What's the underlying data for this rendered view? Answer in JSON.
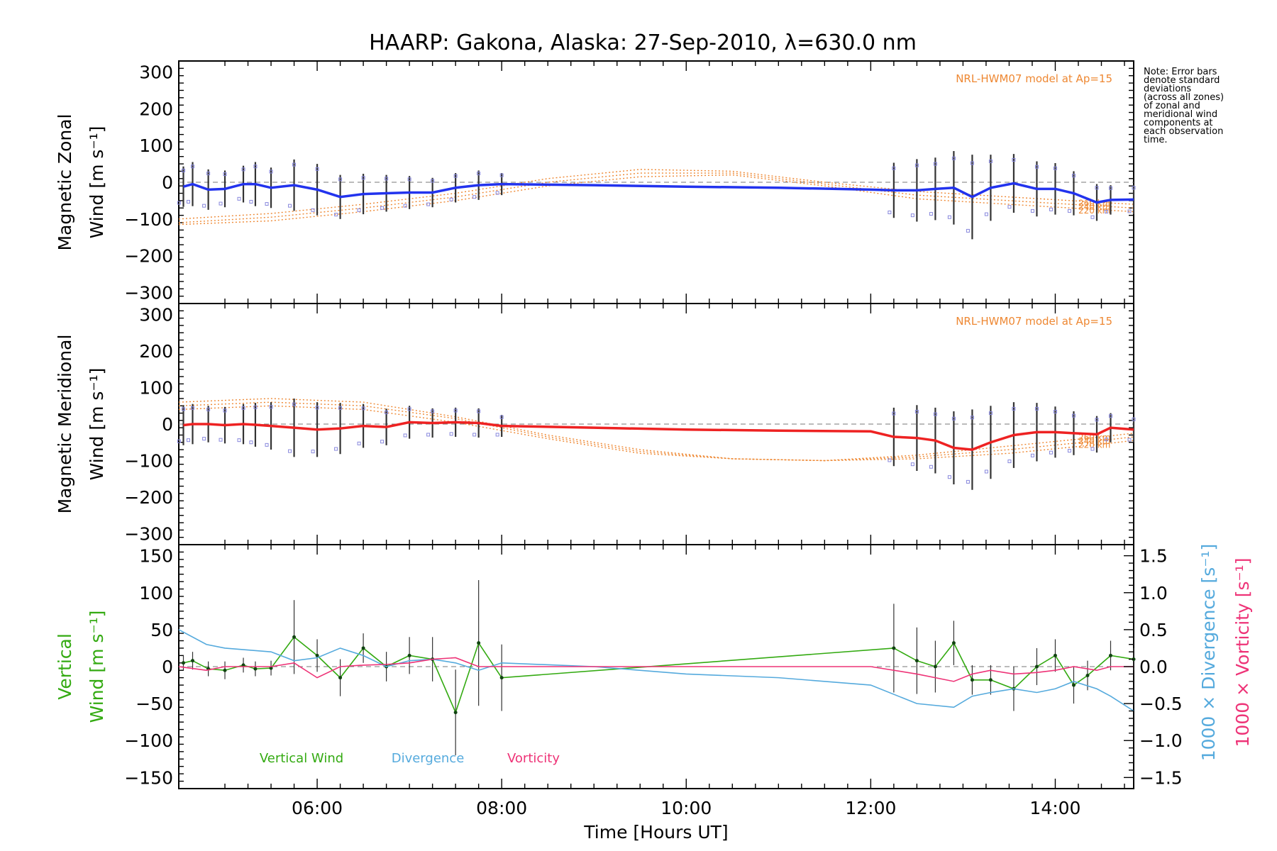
{
  "chart_data": [
    {
      "type": "line",
      "title": "HAARP: Gakona,  Alaska: 27-Sep-2010, λ=630.0 nm",
      "ylabel_lines": [
        "Magnetic Zonal",
        "Wind [m s⁻¹]"
      ],
      "xlim": [
        4.5,
        14.85
      ],
      "ylim": [
        -330,
        330
      ],
      "yticks": [
        300,
        200,
        100,
        0,
        -100,
        -200,
        -300
      ],
      "model_label": "NRL-HWM07 model at Ap=15",
      "altitude_labels": [
        "260 km",
        "240 km",
        "220 km"
      ],
      "series": [
        {
          "color": "#2233ee",
          "x": [
            4.55,
            4.65,
            4.82,
            5.0,
            5.2,
            5.33,
            5.5,
            5.75,
            6.0,
            6.25,
            6.5,
            6.75,
            7.0,
            7.25,
            7.5,
            7.75,
            8.0,
            9.0,
            10.0,
            11.0,
            12.0,
            12.25,
            12.5,
            12.7,
            12.9,
            13.1,
            13.3,
            13.55,
            13.8,
            14.0,
            14.2,
            14.45,
            14.6,
            14.85
          ],
          "y": [
            -12,
            -5,
            -20,
            -18,
            -5,
            -5,
            -15,
            -8,
            -20,
            -40,
            -32,
            -30,
            -28,
            -28,
            -15,
            -8,
            -5,
            -8,
            -12,
            -15,
            -20,
            -22,
            -22,
            -18,
            -15,
            -40,
            -15,
            -3,
            -18,
            -18,
            -30,
            -55,
            -48,
            -47
          ],
          "err": [
            55,
            60,
            55,
            50,
            50,
            60,
            55,
            70,
            70,
            60,
            55,
            50,
            45,
            40,
            40,
            40,
            30,
            0,
            0,
            0,
            0,
            75,
            85,
            85,
            100,
            115,
            90,
            80,
            75,
            70,
            60,
            50,
            40,
            40
          ]
        }
      ],
      "model_curves": [
        {
          "altitude": "260 km",
          "x": [
            4.5,
            5.5,
            6.5,
            7.5,
            8.5,
            9.5,
            10.5,
            11.5,
            12.5,
            13.5,
            14.5,
            14.85
          ],
          "y": [
            -100,
            -85,
            -60,
            -30,
            10,
            35,
            30,
            0,
            -25,
            -40,
            -55,
            -60
          ]
        },
        {
          "altitude": "240 km",
          "x": [
            4.5,
            5.5,
            6.5,
            7.5,
            8.5,
            9.5,
            10.5,
            11.5,
            12.5,
            13.5,
            14.5,
            14.85
          ],
          "y": [
            -110,
            -95,
            -70,
            -40,
            0,
            25,
            25,
            -5,
            -35,
            -50,
            -65,
            -70
          ]
        },
        {
          "altitude": "220 km",
          "x": [
            4.5,
            5.5,
            6.5,
            7.5,
            8.5,
            9.5,
            10.5,
            11.5,
            12.5,
            13.5,
            14.5,
            14.85
          ],
          "y": [
            -115,
            -105,
            -80,
            -50,
            -10,
            15,
            20,
            -10,
            -45,
            -60,
            -75,
            -80
          ]
        }
      ]
    },
    {
      "type": "line",
      "ylabel_lines": [
        "Magnetic Meridional",
        "Wind [m s⁻¹]"
      ],
      "xlim": [
        4.5,
        14.85
      ],
      "ylim": [
        -330,
        330
      ],
      "yticks": [
        300,
        200,
        100,
        0,
        -100,
        -200,
        -300
      ],
      "model_label": "NRL-HWM07 model at Ap=15",
      "altitude_labels": [
        "260 km",
        "240 km",
        "220 km"
      ],
      "series": [
        {
          "color": "#ee2222",
          "x": [
            4.55,
            4.65,
            4.82,
            5.0,
            5.2,
            5.33,
            5.5,
            5.75,
            6.0,
            6.25,
            6.5,
            6.75,
            7.0,
            7.25,
            7.5,
            7.75,
            8.0,
            9.0,
            10.0,
            11.0,
            12.0,
            12.25,
            12.5,
            12.7,
            12.9,
            13.1,
            13.3,
            13.55,
            13.8,
            14.0,
            14.2,
            14.45,
            14.6,
            14.85
          ],
          "y": [
            -3,
            0,
            0,
            -3,
            0,
            -2,
            -5,
            -10,
            -15,
            -12,
            -5,
            -8,
            5,
            3,
            5,
            3,
            -5,
            -10,
            -15,
            -18,
            -20,
            -35,
            -38,
            -45,
            -65,
            -70,
            -50,
            -30,
            -22,
            -22,
            -25,
            -28,
            -10,
            -15
          ],
          "err": [
            55,
            55,
            50,
            50,
            55,
            60,
            65,
            80,
            75,
            70,
            60,
            50,
            45,
            40,
            40,
            40,
            30,
            0,
            0,
            0,
            0,
            80,
            90,
            90,
            100,
            110,
            100,
            90,
            80,
            70,
            60,
            50,
            40,
            35
          ]
        }
      ],
      "model_curves": [
        {
          "altitude": "260 km",
          "x": [
            4.5,
            5.5,
            6.5,
            7.5,
            8.5,
            9.5,
            10.5,
            11.5,
            12.5,
            13.5,
            14.5,
            14.85
          ],
          "y": [
            60,
            70,
            60,
            20,
            -30,
            -70,
            -95,
            -100,
            -85,
            -60,
            -35,
            -25
          ]
        },
        {
          "altitude": "240 km",
          "x": [
            4.5,
            5.5,
            6.5,
            7.5,
            8.5,
            9.5,
            10.5,
            11.5,
            12.5,
            13.5,
            14.5,
            14.85
          ],
          "y": [
            50,
            60,
            50,
            15,
            -35,
            -75,
            -95,
            -100,
            -90,
            -70,
            -45,
            -35
          ]
        },
        {
          "altitude": "220 km",
          "x": [
            4.5,
            5.5,
            6.5,
            7.5,
            8.5,
            9.5,
            10.5,
            11.5,
            12.5,
            13.5,
            14.5,
            14.85
          ],
          "y": [
            40,
            50,
            40,
            5,
            -40,
            -80,
            -95,
            -100,
            -95,
            -80,
            -55,
            -45
          ]
        }
      ]
    },
    {
      "type": "line",
      "ylabel_lines": [
        "Vertical",
        "Wind [m s⁻¹]"
      ],
      "y2label": "1000 × Divergence [s⁻¹]",
      "y3label": "1000 × Vorticity [s⁻¹]",
      "xlabel": "Time [Hours UT]",
      "xticks": [
        "06:00",
        "08:00",
        "10:00",
        "12:00",
        "14:00"
      ],
      "xtick_values": [
        6,
        8,
        10,
        12,
        14
      ],
      "xlim": [
        4.5,
        14.85
      ],
      "ylim": [
        -165,
        165
      ],
      "yticks": [
        150,
        100,
        50,
        0,
        -50,
        -100,
        -150
      ],
      "y2lim": [
        -1.65,
        1.65
      ],
      "y2ticks": [
        "1.5",
        "1.0",
        "0.5",
        "0.0",
        "−0.5",
        "−1.0",
        "−1.5"
      ],
      "y2tick_values": [
        1.5,
        1.0,
        0.5,
        0.0,
        -0.5,
        -1.0,
        -1.5
      ],
      "legend": [
        "Vertical Wind",
        "Divergence",
        "Vorticity"
      ],
      "series": [
        {
          "name": "Vertical Wind",
          "color": "#33aa11",
          "x": [
            4.55,
            4.65,
            4.82,
            5.0,
            5.2,
            5.33,
            5.5,
            5.75,
            6.0,
            6.25,
            6.5,
            6.75,
            7.0,
            7.25,
            7.5,
            7.75,
            8.0,
            12.25,
            12.5,
            12.7,
            12.9,
            13.1,
            13.3,
            13.55,
            13.8,
            14.0,
            14.2,
            14.35,
            14.6,
            14.85
          ],
          "y": [
            5,
            8,
            -3,
            -5,
            2,
            -3,
            -2,
            40,
            15,
            -15,
            25,
            0,
            15,
            10,
            -62,
            32,
            -15,
            25,
            8,
            0,
            32,
            -18,
            -18,
            -30,
            0,
            15,
            -25,
            -12,
            15,
            10
          ],
          "err": [
            10,
            12,
            10,
            12,
            10,
            10,
            10,
            50,
            22,
            25,
            20,
            20,
            25,
            30,
            58,
            85,
            45,
            60,
            45,
            35,
            30,
            20,
            20,
            30,
            25,
            22,
            25,
            20,
            20,
            15
          ]
        },
        {
          "name": "Divergence",
          "color": "#55aadd",
          "axis": "y2",
          "x": [
            4.5,
            4.8,
            5.0,
            5.5,
            5.75,
            6.0,
            6.25,
            6.5,
            6.75,
            7.0,
            7.25,
            7.5,
            7.75,
            8.0,
            9.0,
            10.0,
            11.0,
            12.0,
            12.5,
            12.9,
            13.1,
            13.3,
            13.55,
            13.8,
            14.0,
            14.2,
            14.45,
            14.6,
            14.85
          ],
          "y": [
            0.5,
            0.3,
            0.25,
            0.2,
            0.08,
            0.12,
            0.25,
            0.15,
            0.0,
            0.08,
            0.1,
            0.05,
            -0.05,
            0.05,
            0.0,
            -0.1,
            -0.15,
            -0.25,
            -0.5,
            -0.55,
            -0.4,
            -0.35,
            -0.3,
            -0.35,
            -0.3,
            -0.2,
            -0.3,
            -0.4,
            -0.6
          ]
        },
        {
          "name": "Vorticity",
          "color": "#ee3377",
          "axis": "y2",
          "x": [
            4.5,
            4.8,
            5.0,
            5.5,
            5.75,
            6.0,
            6.25,
            6.5,
            6.75,
            7.0,
            7.25,
            7.5,
            7.75,
            8.0,
            9.0,
            10.0,
            11.0,
            12.0,
            12.5,
            12.9,
            13.1,
            13.3,
            13.55,
            13.8,
            14.0,
            14.2,
            14.45,
            14.6,
            14.85
          ],
          "y": [
            0.0,
            -0.05,
            0.0,
            0.0,
            0.05,
            -0.15,
            0.0,
            0.02,
            0.03,
            0.05,
            0.1,
            0.12,
            0.0,
            0.0,
            0.0,
            0.0,
            0.0,
            0.0,
            -0.1,
            -0.2,
            -0.1,
            -0.05,
            -0.1,
            -0.08,
            -0.05,
            0.0,
            -0.05,
            0.0,
            0.0
          ]
        }
      ]
    }
  ],
  "note_lines": [
    "Note: Error bars",
    "denote standard",
    "deviations",
    "(across all zones)",
    "of zonal and",
    "meridional wind",
    "components at",
    "each observation",
    "time."
  ],
  "colors": {
    "model": "#ee8833",
    "scatter": "#8888dd",
    "errorbar": "#333333",
    "axis": "#000000"
  }
}
